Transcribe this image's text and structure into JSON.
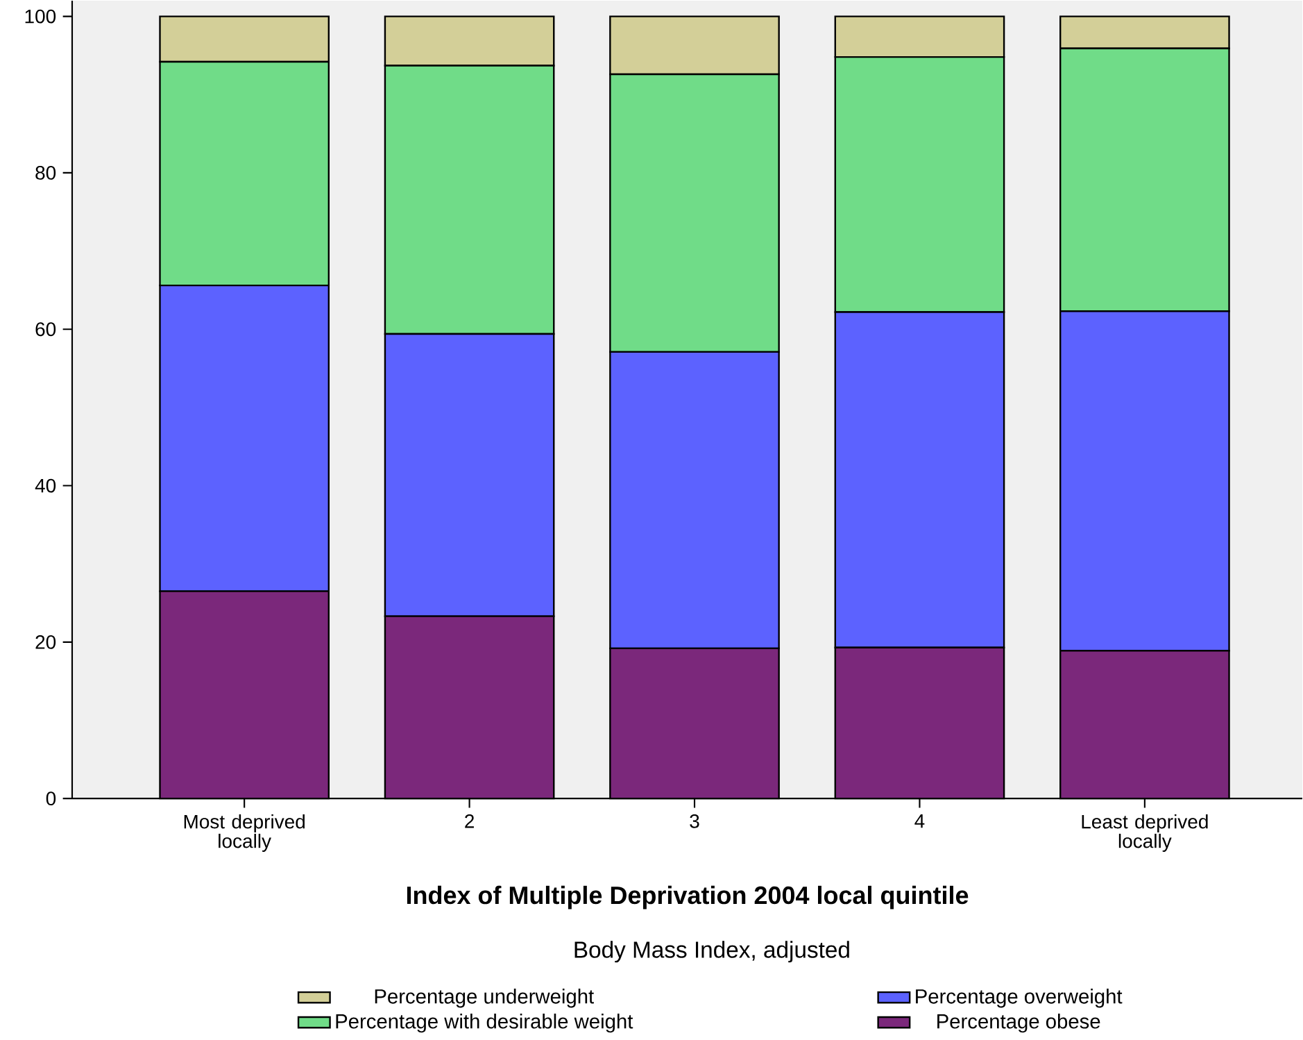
{
  "chart_data": {
    "type": "bar",
    "stacked": true,
    "xlabel": "Index of Multiple Deprivation 2004 local quintile",
    "legend_title": "Body Mass Index, adjusted",
    "categories": [
      "Most deprived locally",
      "2",
      "3",
      "4",
      "Least deprived locally"
    ],
    "series": [
      {
        "name": "Percentage obese",
        "color": "#7b287b",
        "values": [
          26.5,
          23.3,
          19.2,
          19.3,
          18.9
        ]
      },
      {
        "name": "Percentage overweight",
        "color": "#5c62ff",
        "values": [
          39.1,
          36.1,
          37.9,
          42.9,
          43.4
        ]
      },
      {
        "name": "Percentage with desirable weight",
        "color": "#70dc88",
        "values": [
          28.6,
          34.3,
          35.5,
          32.6,
          33.6
        ]
      },
      {
        "name": "Percentage underweight",
        "color": "#d3cf98",
        "values": [
          5.8,
          6.3,
          7.4,
          5.2,
          4.1
        ]
      }
    ],
    "ylim": [
      0,
      102
    ],
    "yticks": [
      0,
      20,
      40,
      60,
      80,
      100
    ],
    "legend": "bottom",
    "grid": false
  }
}
